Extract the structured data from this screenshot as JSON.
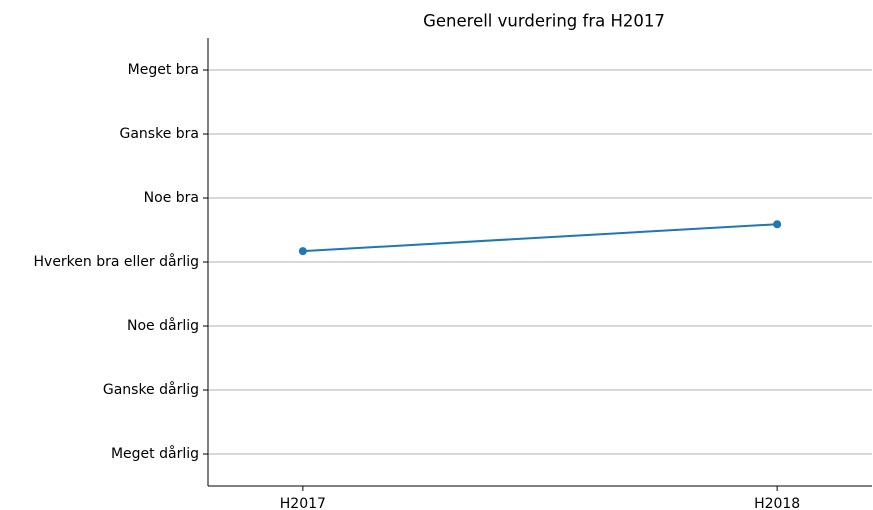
{
  "chart_data": {
    "type": "line",
    "title": "Generell vurdering fra H2017",
    "categories": [
      "H2017",
      "H2018"
    ],
    "series": [
      {
        "name": "Generell vurdering",
        "color": "#1f77b4",
        "values": [
          4.17,
          4.59
        ]
      }
    ],
    "ylim": [
      0.5,
      7.5
    ],
    "yticks": [
      {
        "value": 1,
        "label": "Meget dårlig"
      },
      {
        "value": 2,
        "label": "Ganske dårlig"
      },
      {
        "value": 3,
        "label": "Noe dårlig"
      },
      {
        "value": 4,
        "label": "Hverken bra eller dårlig"
      },
      {
        "value": 5,
        "label": "Noe bra"
      },
      {
        "value": 6,
        "label": "Ganske bra"
      },
      {
        "value": 7,
        "label": "Meget bra"
      }
    ],
    "grid": true
  }
}
